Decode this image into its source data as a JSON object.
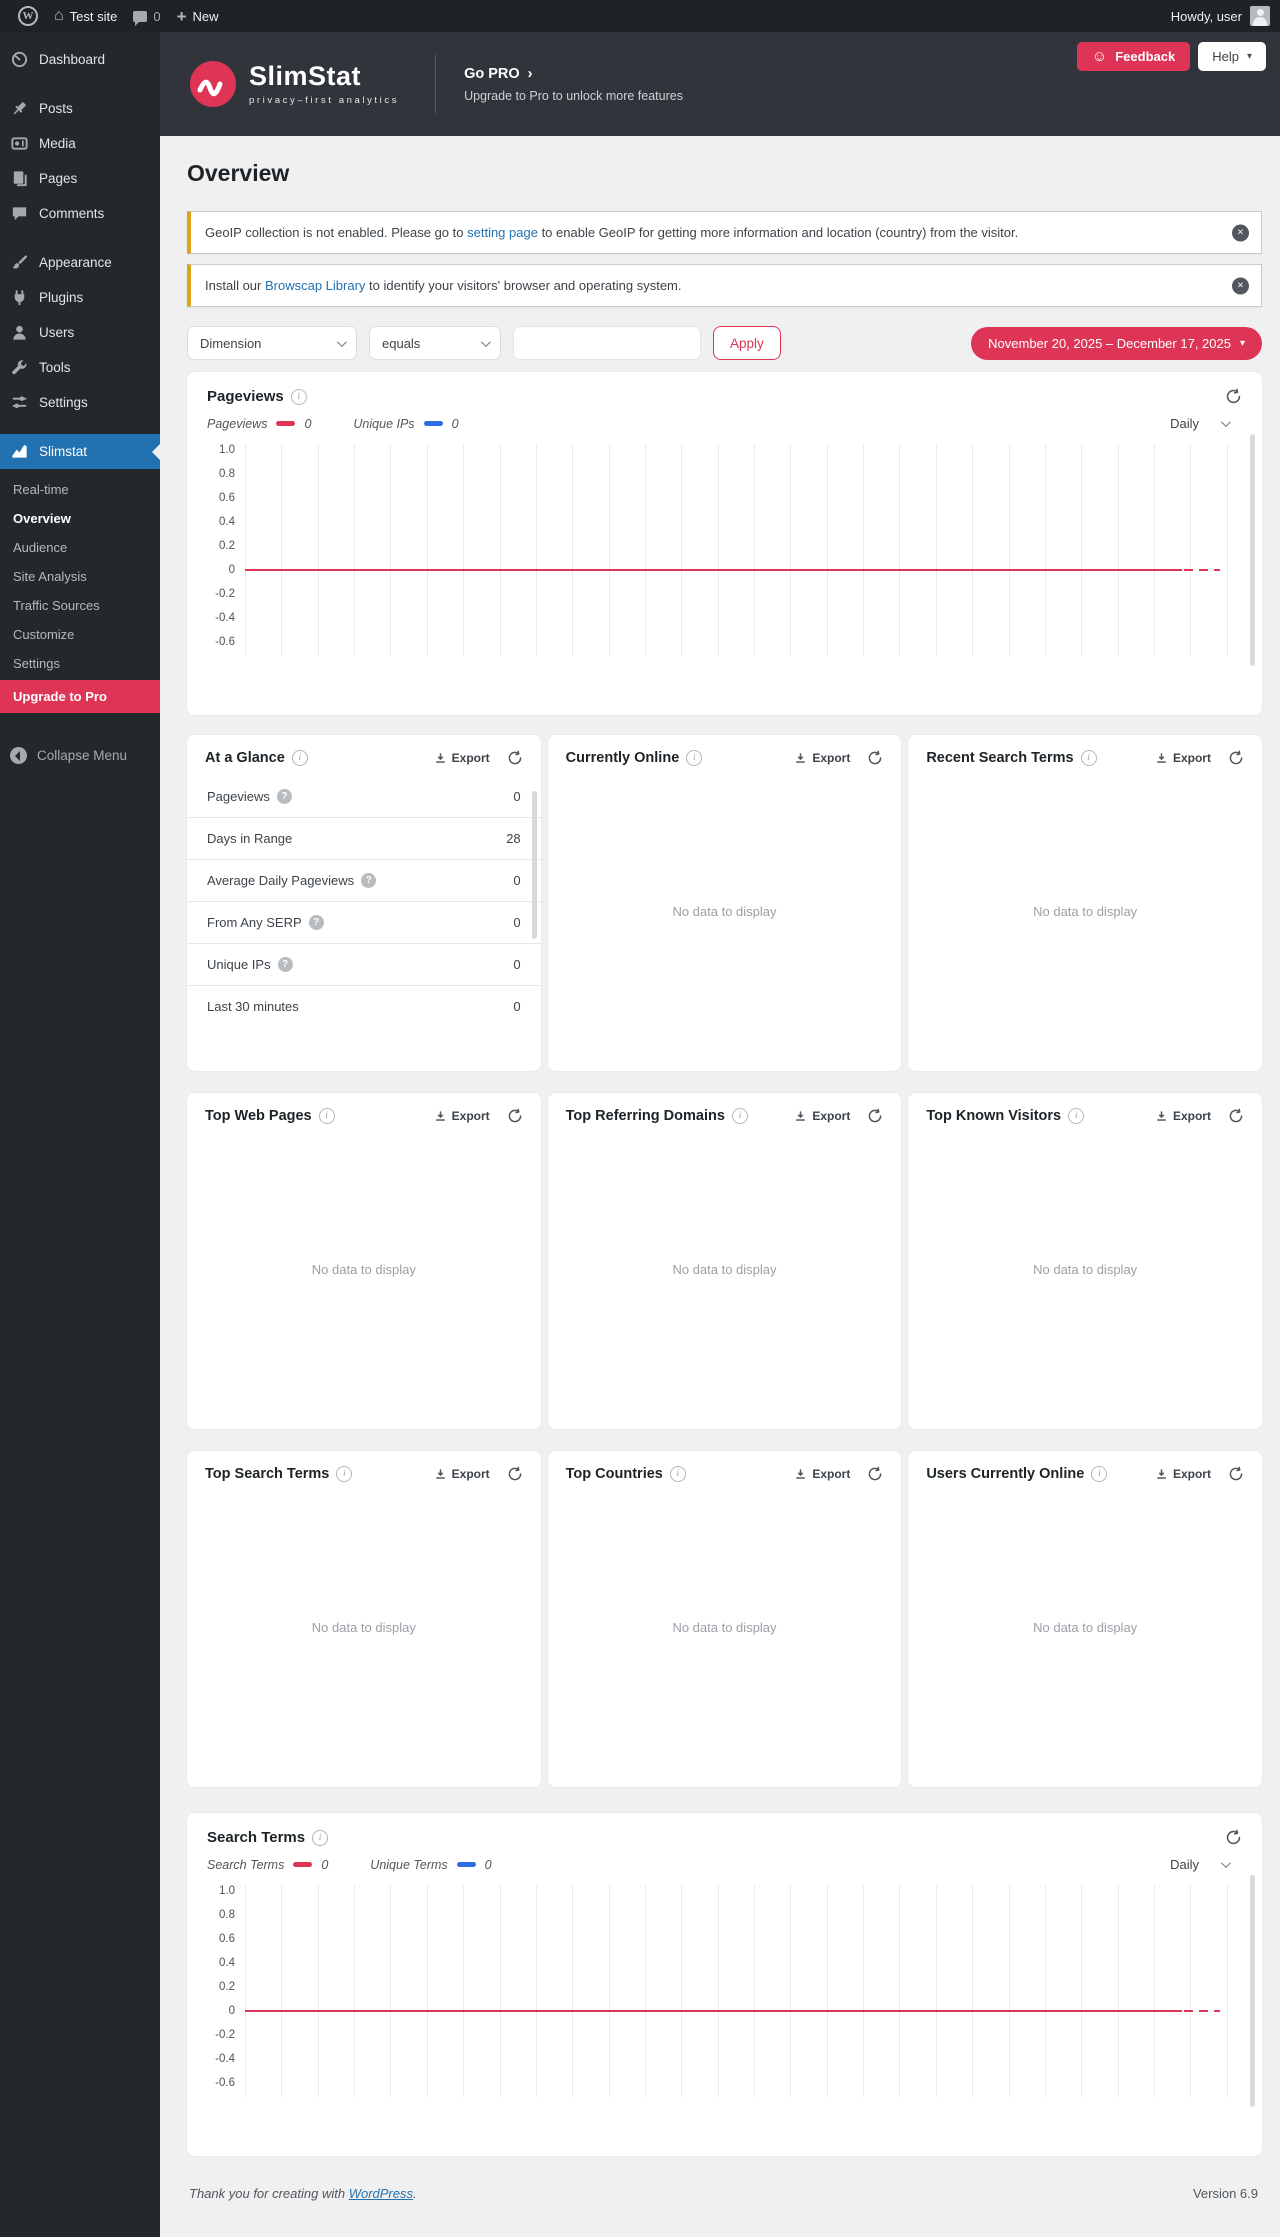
{
  "theme": {
    "accent": "#de3557",
    "legend_blue": "#2d6ce5",
    "active_menu_blue": "#2271b1",
    "notice_warning": "#dba617"
  },
  "icons": {
    "wordpress": "W",
    "home": "⌂",
    "plus": "+",
    "smiley": "☺",
    "caret_down": "▾",
    "dismiss": "×",
    "go_pro_chevron": "›",
    "info": "i",
    "help": "?"
  },
  "admin_bar": {
    "site_name": "Test site",
    "comment_count": "0",
    "new_label": "New",
    "howdy": "Howdy, user"
  },
  "sidebar": {
    "menu": [
      {
        "label": "Dashboard"
      },
      {
        "label": "Posts"
      },
      {
        "label": "Media"
      },
      {
        "label": "Pages"
      },
      {
        "label": "Comments"
      },
      {
        "label": "Appearance"
      },
      {
        "label": "Plugins"
      },
      {
        "label": "Users"
      },
      {
        "label": "Tools"
      },
      {
        "label": "Settings"
      }
    ],
    "slimstat_label": "Slimstat",
    "submenu": [
      "Real-time",
      "Overview",
      "Audience",
      "Site Analysis",
      "Traffic Sources",
      "Customize",
      "Settings",
      "Upgrade to Pro"
    ],
    "collapse_label": "Collapse Menu"
  },
  "header": {
    "brand": "SlimStat",
    "tagline": "privacy–first analytics",
    "go_pro": "Go PRO",
    "go_pro_sub": "Upgrade to Pro to unlock more features",
    "feedback_label": "Feedback",
    "help_label": "Help"
  },
  "page": {
    "title": "Overview",
    "notices": [
      {
        "text_before": "GeoIP collection is not enabled. Please go to ",
        "link": "setting page",
        "text_after": " to enable GeoIP for getting more information and location (country) from the visitor."
      },
      {
        "text_before": "Install our ",
        "link": "Browscap Library",
        "text_after": " to identify your visitors' browser and operating system."
      }
    ],
    "filter": {
      "dimension_value": "Dimension",
      "operator_value": "equals",
      "input_value": "",
      "apply_label": "Apply"
    },
    "date_range": "November 20, 2025 – December 17, 2025"
  },
  "panels": {
    "export_label": "Export",
    "no_data": "No data to display",
    "at_a_glance": {
      "title": "At a Glance",
      "rows": [
        {
          "label": "Pageviews",
          "value": "0"
        },
        {
          "label": "Days in Range",
          "value": "28"
        },
        {
          "label": "Average Daily Pageviews",
          "value": "0"
        },
        {
          "label": "From Any SERP",
          "value": "0"
        },
        {
          "label": "Unique IPs",
          "value": "0"
        },
        {
          "label": "Last 30 minutes",
          "value": "0"
        }
      ]
    },
    "currently_online": {
      "title": "Currently Online"
    },
    "recent_search_terms": {
      "title": "Recent Search Terms"
    },
    "top_web_pages": {
      "title": "Top Web Pages"
    },
    "top_referring_domains": {
      "title": "Top Referring Domains"
    },
    "top_known_visitors": {
      "title": "Top Known Visitors"
    },
    "top_search_terms": {
      "title": "Top Search Terms"
    },
    "top_countries": {
      "title": "Top Countries"
    },
    "users_currently_online": {
      "title": "Users Currently Online"
    }
  },
  "chart_data": [
    {
      "type": "line",
      "title": "Pageviews",
      "interval": "Daily",
      "days": 28,
      "x_range": "November 20, 2025 – December 17, 2025",
      "ylim": [
        -0.6,
        1.0
      ],
      "yticks": [
        "1.0",
        "0.8",
        "0.6",
        "0.4",
        "0.2",
        "0",
        "-0.2",
        "-0.4",
        "-0.6"
      ],
      "grid": true,
      "legend_position": "top",
      "series": [
        {
          "name": "Pageviews",
          "color": "#de3557",
          "total": "0",
          "values": [
            0,
            0,
            0,
            0,
            0,
            0,
            0,
            0,
            0,
            0,
            0,
            0,
            0,
            0,
            0,
            0,
            0,
            0,
            0,
            0,
            0,
            0,
            0,
            0,
            0,
            0,
            0,
            0
          ]
        },
        {
          "name": "Unique IPs",
          "color": "#2d6ce5",
          "total": "0",
          "values": [
            0,
            0,
            0,
            0,
            0,
            0,
            0,
            0,
            0,
            0,
            0,
            0,
            0,
            0,
            0,
            0,
            0,
            0,
            0,
            0,
            0,
            0,
            0,
            0,
            0,
            0,
            0,
            0
          ]
        }
      ]
    },
    {
      "type": "line",
      "title": "Search Terms",
      "interval": "Daily",
      "days": 28,
      "x_range": "November 20, 2025 – December 17, 2025",
      "ylim": [
        -0.6,
        1.0
      ],
      "yticks": [
        "1.0",
        "0.8",
        "0.6",
        "0.4",
        "0.2",
        "0",
        "-0.2",
        "-0.4",
        "-0.6"
      ],
      "grid": true,
      "legend_position": "top",
      "series": [
        {
          "name": "Search Terms",
          "color": "#de3557",
          "total": "0",
          "values": [
            0,
            0,
            0,
            0,
            0,
            0,
            0,
            0,
            0,
            0,
            0,
            0,
            0,
            0,
            0,
            0,
            0,
            0,
            0,
            0,
            0,
            0,
            0,
            0,
            0,
            0,
            0,
            0
          ]
        },
        {
          "name": "Unique Terms",
          "color": "#2d6ce5",
          "total": "0",
          "values": [
            0,
            0,
            0,
            0,
            0,
            0,
            0,
            0,
            0,
            0,
            0,
            0,
            0,
            0,
            0,
            0,
            0,
            0,
            0,
            0,
            0,
            0,
            0,
            0,
            0,
            0,
            0,
            0
          ]
        }
      ]
    }
  ],
  "footer": {
    "thanks_before": "Thank you for creating with ",
    "link": "WordPress",
    "thanks_after": ".",
    "version": "Version 6.9"
  }
}
